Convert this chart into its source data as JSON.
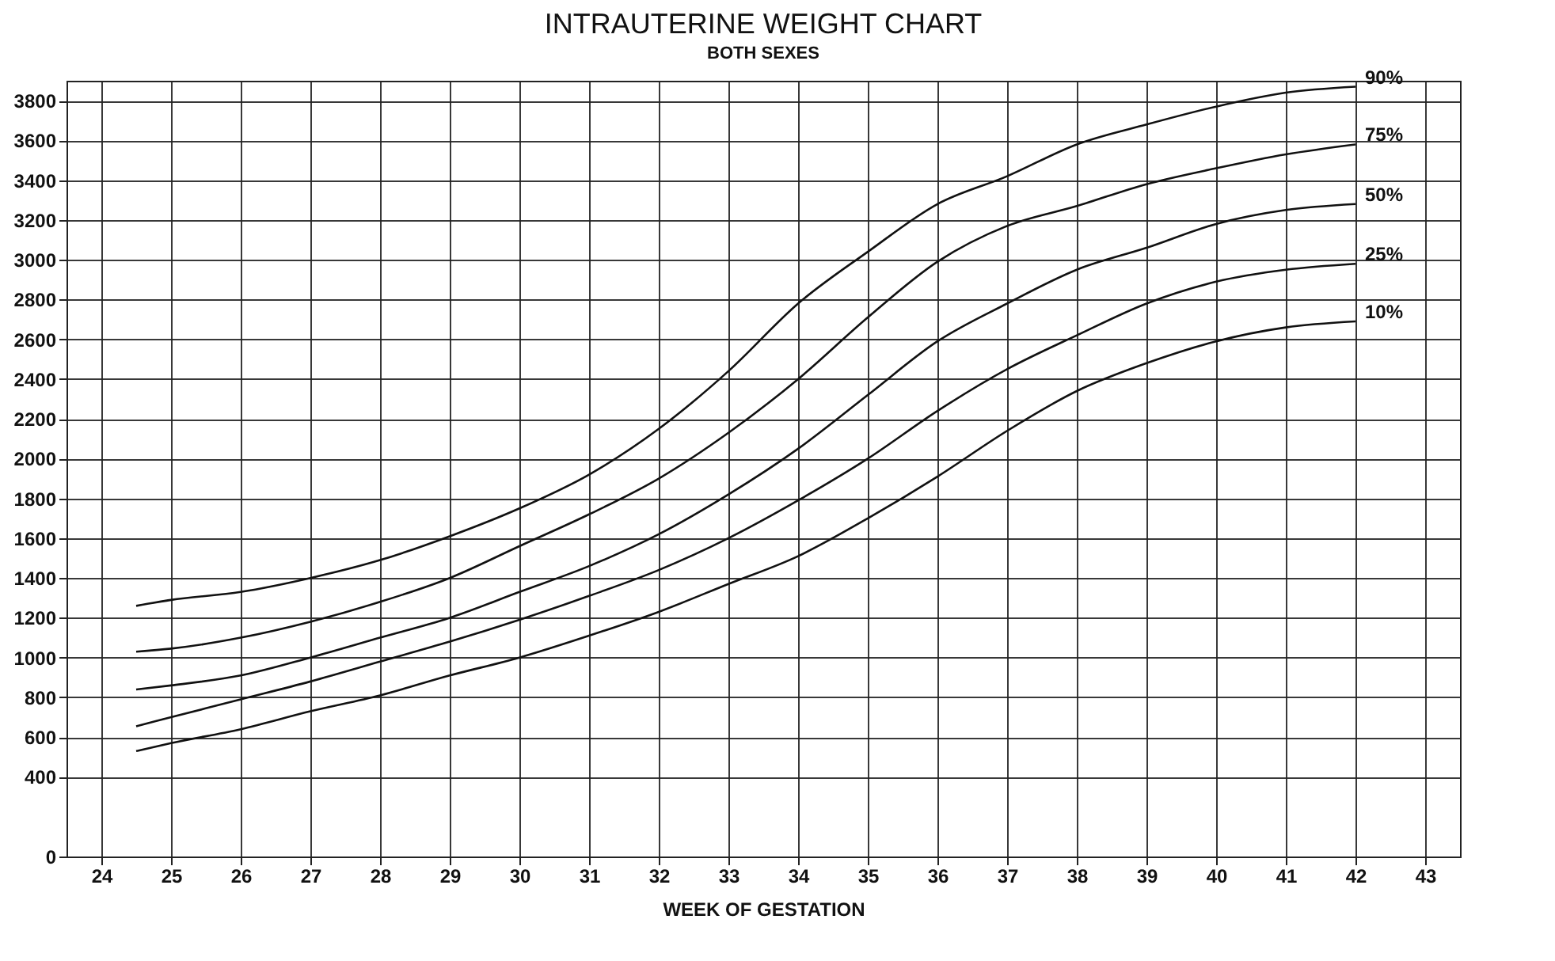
{
  "chart_data": {
    "type": "line",
    "title": "INTRAUTERINE WEIGHT CHART",
    "subtitle": "BOTH SEXES",
    "xlabel": "WEEK OF GESTATION",
    "x": [
      24.5,
      25,
      26,
      27,
      28,
      29,
      30,
      31,
      32,
      33,
      34,
      35,
      36,
      37,
      38,
      39,
      40,
      41,
      42
    ],
    "series": [
      {
        "name": "90%",
        "color": "#111111",
        "values": [
          1260,
          1290,
          1330,
          1400,
          1490,
          1610,
          1750,
          1920,
          2150,
          2440,
          2780,
          3040,
          3280,
          3420,
          3580,
          3680,
          3770,
          3840,
          3870
        ]
      },
      {
        "name": "75%",
        "color": "#111111",
        "values": [
          1030,
          1045,
          1100,
          1180,
          1280,
          1400,
          1560,
          1720,
          1900,
          2130,
          2400,
          2710,
          2990,
          3170,
          3270,
          3380,
          3460,
          3530,
          3580
        ]
      },
      {
        "name": "50%",
        "color": "#111111",
        "values": [
          840,
          860,
          910,
          1000,
          1100,
          1200,
          1330,
          1460,
          1620,
          1820,
          2050,
          2320,
          2590,
          2780,
          2950,
          3060,
          3180,
          3250,
          3280
        ]
      },
      {
        "name": "25%",
        "color": "#111111",
        "values": [
          655,
          700,
          790,
          880,
          980,
          1080,
          1190,
          1310,
          1440,
          1600,
          1790,
          2000,
          2240,
          2450,
          2620,
          2780,
          2890,
          2950,
          2980
        ]
      },
      {
        "name": "10%",
        "color": "#111111",
        "values": [
          530,
          570,
          640,
          730,
          810,
          910,
          1000,
          1110,
          1230,
          1370,
          1510,
          1700,
          1910,
          2140,
          2340,
          2480,
          2590,
          2660,
          2690
        ]
      }
    ],
    "xlim": [
      23.5,
      43.5
    ],
    "xticks": [
      24,
      25,
      26,
      27,
      28,
      29,
      30,
      31,
      32,
      33,
      34,
      35,
      36,
      37,
      38,
      39,
      40,
      41,
      42,
      43
    ],
    "ylim": [
      0,
      3900
    ],
    "yticks": [
      0,
      400,
      600,
      800,
      1000,
      1200,
      1400,
      1600,
      1800,
      2000,
      2200,
      2400,
      2600,
      2800,
      3000,
      3200,
      3400,
      3600,
      3800
    ],
    "grid": true,
    "legend": false,
    "marker": "none",
    "line_style": "solid"
  }
}
